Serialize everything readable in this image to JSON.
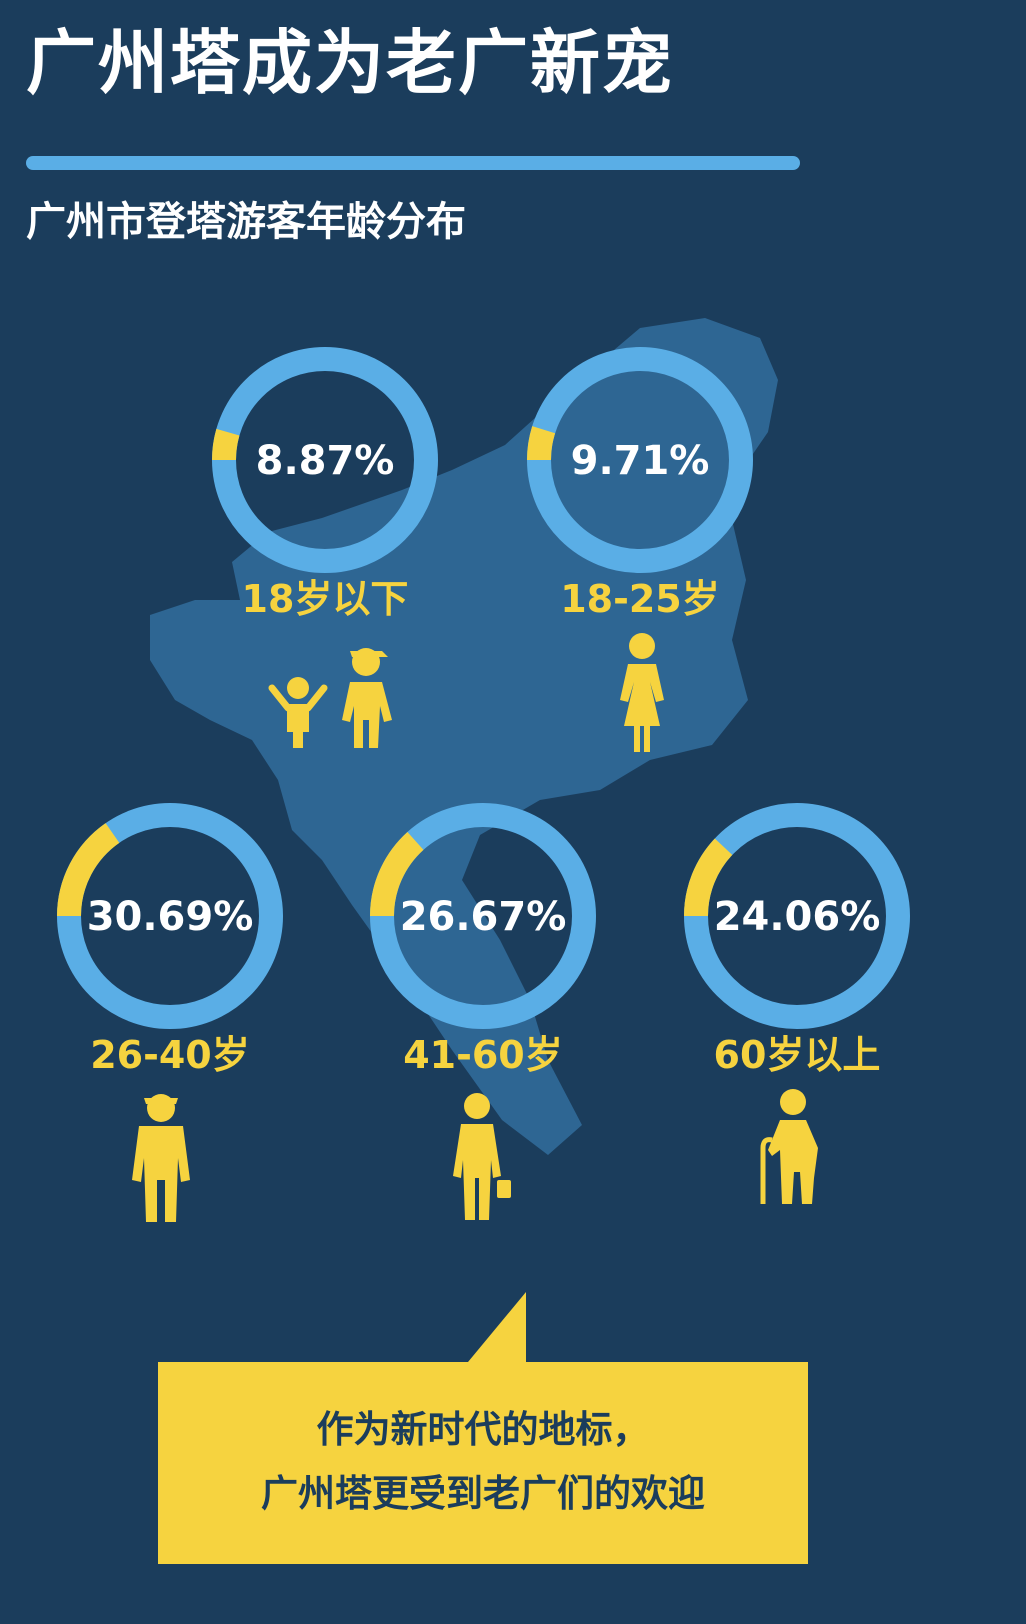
{
  "header": {
    "title": "广州塔成为老广新宠",
    "subtitle": "广州市登塔游客年龄分布"
  },
  "colors": {
    "background": "#1b3d5c",
    "ring": "#5aaee6",
    "highlight": "#f6d33f",
    "map": "#2e6693",
    "white": "#ffffff"
  },
  "chart_data": {
    "type": "pie",
    "title": "广州市登塔游客年龄分布",
    "categories": [
      "18岁以下",
      "18-25岁",
      "26-40岁",
      "41-60岁",
      "60岁以上"
    ],
    "values": [
      8.87,
      9.71,
      30.69,
      26.67,
      24.06
    ],
    "value_labels": [
      "8.87%",
      "9.71%",
      "30.69%",
      "26.67%",
      "24.06%"
    ],
    "icons": [
      "children-icon",
      "woman-icon",
      "worker-icon",
      "businessman-icon",
      "elderly-cane-icon"
    ]
  },
  "callout": {
    "line1": "作为新时代的地标，",
    "line2": "广州塔更受到老广们的欢迎"
  }
}
